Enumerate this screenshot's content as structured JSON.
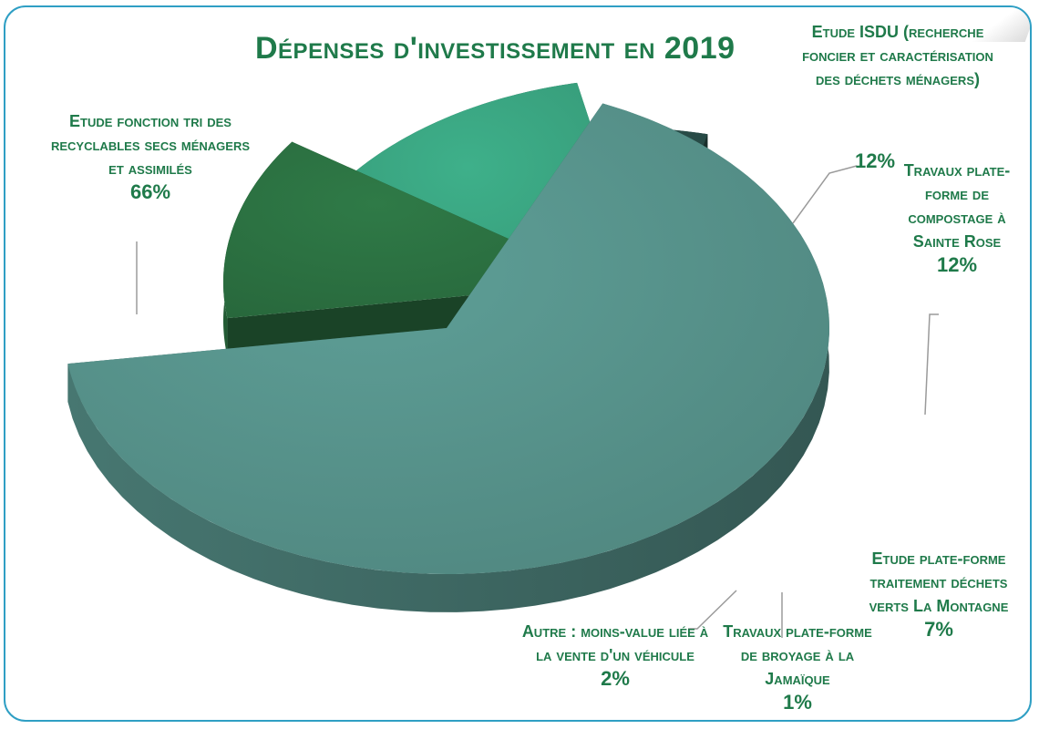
{
  "chart_data": {
    "type": "pie",
    "title": "Dépenses d'investissement en 2019",
    "slices": [
      {
        "label": "Etude fonction tri des recyclables secs ménagers et assimilés",
        "value": 66,
        "value_label": "66%",
        "color": "#5e9f97"
      },
      {
        "label": "Etude ISDU (recherche foncier et caractérisation des déchets ménagers)",
        "value": 12,
        "value_label": "12%",
        "color": "#2f7a47"
      },
      {
        "label": "Travaux plate-forme de compostage à Sainte Rose",
        "value": 12,
        "value_label": "12%",
        "color": "#3eb08a"
      },
      {
        "label": "Etude plate-forme traitement déchets verts La Montagne",
        "value": 7,
        "value_label": "7%",
        "color": "#2d5550"
      },
      {
        "label": "Travaux plate-forme de broyage à la Jamaïque",
        "value": 1,
        "value_label": "1%",
        "color": "#1f4a2a"
      },
      {
        "label": "Autre : moins-value liée à la vente d'un véhicule",
        "value": 2,
        "value_label": "2%",
        "color": "#226a55"
      }
    ],
    "legend": "none"
  }
}
